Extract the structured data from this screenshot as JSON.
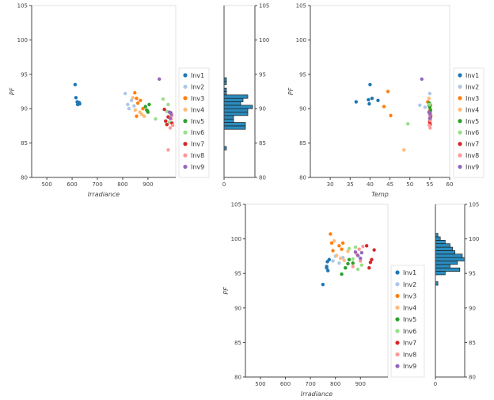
{
  "colors": {
    "Inv1": "#1f77b4",
    "Inv2": "#aec7e8",
    "Inv3": "#ff7f0e",
    "Inv4": "#ffbb78",
    "Inv5": "#2ca02c",
    "Inv6": "#98df8a",
    "Inv7": "#d62728",
    "Inv8": "#ff9896",
    "Inv9": "#9467bd",
    "hist_fill": "#2b8cbe",
    "hist_stroke": "#1a1a1a"
  },
  "legend_entries": [
    "Inv1",
    "Inv2",
    "Inv3",
    "Inv4",
    "Inv5",
    "Inv6",
    "Inv7",
    "Inv8",
    "Inv9"
  ],
  "chart_data": [
    {
      "id": "top-left",
      "type": "scatter",
      "xlabel": "Irradiance",
      "ylabel": "PF",
      "xlim": [
        440,
        1010
      ],
      "ylim": [
        80,
        105
      ],
      "xticks": [
        500,
        600,
        700,
        800,
        900
      ],
      "yticks": [
        80,
        85,
        90,
        95,
        100,
        105
      ],
      "legend_position": "right",
      "series": [
        {
          "name": "Inv1",
          "points": [
            [
              612,
              93.5
            ],
            [
              615,
              91.6
            ],
            [
              620,
              91.0
            ],
            [
              622,
              90.6
            ],
            [
              628,
              90.9
            ],
            [
              630,
              90.7
            ]
          ]
        },
        {
          "name": "Inv2",
          "points": [
            [
              810,
              92.2
            ],
            [
              820,
              90.6
            ],
            [
              825,
              90.0
            ],
            [
              835,
              91.2
            ],
            [
              845,
              90.4
            ]
          ]
        },
        {
          "name": "Inv3",
          "points": [
            [
              848,
              92.3
            ],
            [
              855,
              91.5
            ],
            [
              860,
              90.8
            ],
            [
              855,
              88.9
            ],
            [
              870,
              91.2
            ],
            [
              880,
              90.0
            ]
          ]
        },
        {
          "name": "Inv4",
          "points": [
            [
              840,
              91.6
            ],
            [
              850,
              89.8
            ],
            [
              868,
              89.5
            ],
            [
              875,
              89.2
            ],
            [
              885,
              88.9
            ]
          ]
        },
        {
          "name": "Inv5",
          "points": [
            [
              890,
              90.3
            ],
            [
              895,
              89.8
            ],
            [
              900,
              89.5
            ],
            [
              905,
              90.6
            ],
            [
              898,
              89.7
            ]
          ]
        },
        {
          "name": "Inv6",
          "points": [
            [
              930,
              88.5
            ],
            [
              960,
              91.4
            ],
            [
              975,
              89.6
            ],
            [
              980,
              90.6
            ],
            [
              985,
              88.0
            ]
          ]
        },
        {
          "name": "Inv7",
          "points": [
            [
              965,
              89.9
            ],
            [
              970,
              88.2
            ],
            [
              975,
              87.7
            ],
            [
              980,
              88.8
            ],
            [
              990,
              89.4
            ],
            [
              995,
              87.9
            ]
          ]
        },
        {
          "name": "Inv8",
          "points": [
            [
              980,
              84.0
            ],
            [
              988,
              87.2
            ],
            [
              992,
              88.5
            ],
            [
              995,
              89.0
            ],
            [
              998,
              87.6
            ]
          ]
        },
        {
          "name": "Inv9",
          "points": [
            [
              945,
              94.3
            ],
            [
              985,
              89.5
            ],
            [
              988,
              88.6
            ],
            [
              992,
              89.2
            ]
          ]
        }
      ]
    },
    {
      "id": "top-left-hist",
      "type": "bar",
      "orientation": "horizontal",
      "ylim": [
        80,
        105
      ],
      "yticks": [
        80,
        85,
        90,
        95,
        100,
        105
      ],
      "xticks": [
        0
      ],
      "xmax": 13,
      "bins": [
        {
          "lo": 84.0,
          "hi": 84.5,
          "count": 1
        },
        {
          "lo": 87.0,
          "hi": 87.5,
          "count": 9
        },
        {
          "lo": 87.5,
          "hi": 88.0,
          "count": 9
        },
        {
          "lo": 88.0,
          "hi": 88.5,
          "count": 4
        },
        {
          "lo": 88.5,
          "hi": 89.0,
          "count": 4
        },
        {
          "lo": 89.0,
          "hi": 89.5,
          "count": 10
        },
        {
          "lo": 89.5,
          "hi": 90.0,
          "count": 10
        },
        {
          "lo": 90.0,
          "hi": 90.5,
          "count": 12
        },
        {
          "lo": 90.5,
          "hi": 91.0,
          "count": 7
        },
        {
          "lo": 91.0,
          "hi": 91.5,
          "count": 8
        },
        {
          "lo": 91.5,
          "hi": 92.0,
          "count": 10
        },
        {
          "lo": 92.0,
          "hi": 92.5,
          "count": 1
        },
        {
          "lo": 92.5,
          "hi": 93.0,
          "count": 1
        },
        {
          "lo": 93.5,
          "hi": 94.0,
          "count": 1
        },
        {
          "lo": 94.0,
          "hi": 94.5,
          "count": 1
        }
      ]
    },
    {
      "id": "top-right",
      "type": "scatter",
      "xlabel": "Temp",
      "ylabel": "PF",
      "xlim": [
        25,
        60
      ],
      "ylim": [
        80,
        105
      ],
      "xticks": [
        30,
        35,
        40,
        45,
        50,
        55,
        60
      ],
      "yticks": [
        80,
        85,
        90,
        95,
        100,
        105
      ],
      "legend_position": "right",
      "series": [
        {
          "name": "Inv1",
          "points": [
            [
              36.5,
              91.0
            ],
            [
              39.8,
              90.7
            ],
            [
              40.0,
              93.5
            ],
            [
              40.5,
              91.5
            ],
            [
              42.0,
              91.2
            ],
            [
              39.6,
              91.3
            ]
          ]
        },
        {
          "name": "Inv2",
          "points": [
            [
              52.5,
              90.5
            ],
            [
              53.8,
              90.2
            ],
            [
              54.5,
              91.0
            ],
            [
              55.0,
              92.2
            ],
            [
              55.2,
              89.5
            ]
          ]
        },
        {
          "name": "Inv3",
          "points": [
            [
              44.5,
              92.5
            ],
            [
              45.2,
              89.0
            ],
            [
              43.5,
              90.3
            ],
            [
              54.5,
              91.0
            ],
            [
              55.0,
              89.8
            ],
            [
              55.2,
              90.5
            ]
          ]
        },
        {
          "name": "Inv4",
          "points": [
            [
              48.5,
              84.0
            ],
            [
              54.8,
              91.5
            ],
            [
              55.0,
              90.0
            ],
            [
              55.3,
              89.0
            ],
            [
              55.0,
              88.0
            ]
          ]
        },
        {
          "name": "Inv5",
          "points": [
            [
              54.8,
              90.5
            ],
            [
              55.0,
              90.2
            ],
            [
              55.2,
              89.8
            ],
            [
              55.0,
              89.5
            ],
            [
              54.9,
              90.8
            ]
          ]
        },
        {
          "name": "Inv6",
          "points": [
            [
              49.5,
              87.8
            ],
            [
              55.0,
              88.5
            ],
            [
              55.2,
              88.9
            ],
            [
              55.1,
              89.2
            ],
            [
              54.9,
              90.6
            ]
          ]
        },
        {
          "name": "Inv7",
          "points": [
            [
              55.0,
              88.2
            ],
            [
              55.1,
              87.7
            ],
            [
              55.2,
              88.8
            ],
            [
              54.9,
              89.4
            ],
            [
              55.0,
              87.9
            ]
          ]
        },
        {
          "name": "Inv8",
          "points": [
            [
              55.1,
              87.2
            ],
            [
              55.2,
              88.5
            ],
            [
              55.0,
              89.0
            ],
            [
              54.9,
              87.6
            ],
            [
              55.1,
              88.3
            ]
          ]
        },
        {
          "name": "Inv9",
          "points": [
            [
              53.0,
              94.3
            ],
            [
              54.8,
              89.5
            ],
            [
              55.0,
              88.6
            ],
            [
              55.1,
              89.2
            ]
          ]
        }
      ]
    },
    {
      "id": "bottom",
      "type": "scatter",
      "xlabel": "Irradiance",
      "ylabel": "PF",
      "xlim": [
        440,
        1010
      ],
      "ylim": [
        80,
        105
      ],
      "xticks": [
        500,
        600,
        700,
        800,
        900
      ],
      "yticks": [
        80,
        85,
        90,
        95,
        100,
        105
      ],
      "legend_position": "right",
      "series": [
        {
          "name": "Inv1",
          "points": [
            [
              750,
              93.4
            ],
            [
              765,
              96.0
            ],
            [
              768,
              96.7
            ],
            [
              770,
              95.4
            ],
            [
              775,
              97.0
            ],
            [
              765,
              95.8
            ]
          ]
        },
        {
          "name": "Inv2",
          "points": [
            [
              790,
              96.8
            ],
            [
              800,
              97.5
            ],
            [
              815,
              96.5
            ],
            [
              830,
              97.3
            ],
            [
              840,
              95.8
            ]
          ]
        },
        {
          "name": "Inv3",
          "points": [
            [
              780,
              100.7
            ],
            [
              785,
              99.4
            ],
            [
              790,
              98.3
            ],
            [
              815,
              99.0
            ],
            [
              825,
              98.5
            ],
            [
              830,
              99.4
            ]
          ]
        },
        {
          "name": "Inv4",
          "points": [
            [
              795,
              99.7
            ],
            [
              805,
              97.6
            ],
            [
              820,
              97.2
            ],
            [
              835,
              96.9
            ],
            [
              850,
              98.2
            ]
          ]
        },
        {
          "name": "Inv5",
          "points": [
            [
              825,
              94.9
            ],
            [
              840,
              95.8
            ],
            [
              850,
              96.4
            ],
            [
              855,
              97.0
            ],
            [
              870,
              96.5
            ]
          ]
        },
        {
          "name": "Inv6",
          "points": [
            [
              855,
              98.6
            ],
            [
              870,
              97.1
            ],
            [
              890,
              95.6
            ],
            [
              905,
              96.2
            ],
            [
              880,
              98.8
            ]
          ]
        },
        {
          "name": "Inv7",
          "points": [
            [
              925,
              99.0
            ],
            [
              940,
              96.6
            ],
            [
              945,
              97.0
            ],
            [
              955,
              98.4
            ],
            [
              935,
              95.8
            ]
          ]
        },
        {
          "name": "Inv8",
          "points": [
            [
              870,
              96.0
            ],
            [
              885,
              97.8
            ],
            [
              895,
              98.5
            ],
            [
              900,
              96.8
            ],
            [
              910,
              98.9
            ]
          ]
        },
        {
          "name": "Inv9",
          "points": [
            [
              880,
              98.1
            ],
            [
              890,
              97.6
            ],
            [
              900,
              97.2
            ],
            [
              905,
              98.0
            ]
          ]
        }
      ]
    },
    {
      "id": "bottom-hist",
      "type": "bar",
      "orientation": "horizontal",
      "ylim": [
        80,
        105
      ],
      "yticks": [
        80,
        85,
        90,
        95,
        100,
        105
      ],
      "xticks": [
        0
      ],
      "xmax": 12,
      "bins": [
        {
          "lo": 93.3,
          "hi": 93.8,
          "count": 1
        },
        {
          "lo": 94.8,
          "hi": 95.3,
          "count": 4
        },
        {
          "lo": 95.3,
          "hi": 95.8,
          "count": 10
        },
        {
          "lo": 95.8,
          "hi": 96.3,
          "count": 6
        },
        {
          "lo": 96.3,
          "hi": 96.8,
          "count": 9
        },
        {
          "lo": 96.8,
          "hi": 97.3,
          "count": 12
        },
        {
          "lo": 97.3,
          "hi": 97.8,
          "count": 11
        },
        {
          "lo": 97.8,
          "hi": 98.3,
          "count": 8
        },
        {
          "lo": 98.3,
          "hi": 98.8,
          "count": 7
        },
        {
          "lo": 98.8,
          "hi": 99.3,
          "count": 6
        },
        {
          "lo": 99.3,
          "hi": 99.8,
          "count": 4
        },
        {
          "lo": 99.8,
          "hi": 100.3,
          "count": 2
        },
        {
          "lo": 100.3,
          "hi": 100.8,
          "count": 1
        }
      ]
    }
  ]
}
